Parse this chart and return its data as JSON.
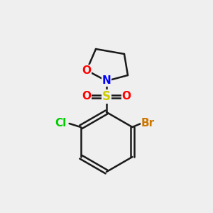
{
  "background_color": "#efefef",
  "bond_color": "#1a1a1a",
  "bond_lw": 1.8,
  "atom_colors": {
    "O": "#ff0000",
    "N": "#0000ff",
    "S": "#cccc00",
    "Cl": "#00cc00",
    "Br": "#cc7700"
  },
  "font_size": 11,
  "font_weight": "bold"
}
